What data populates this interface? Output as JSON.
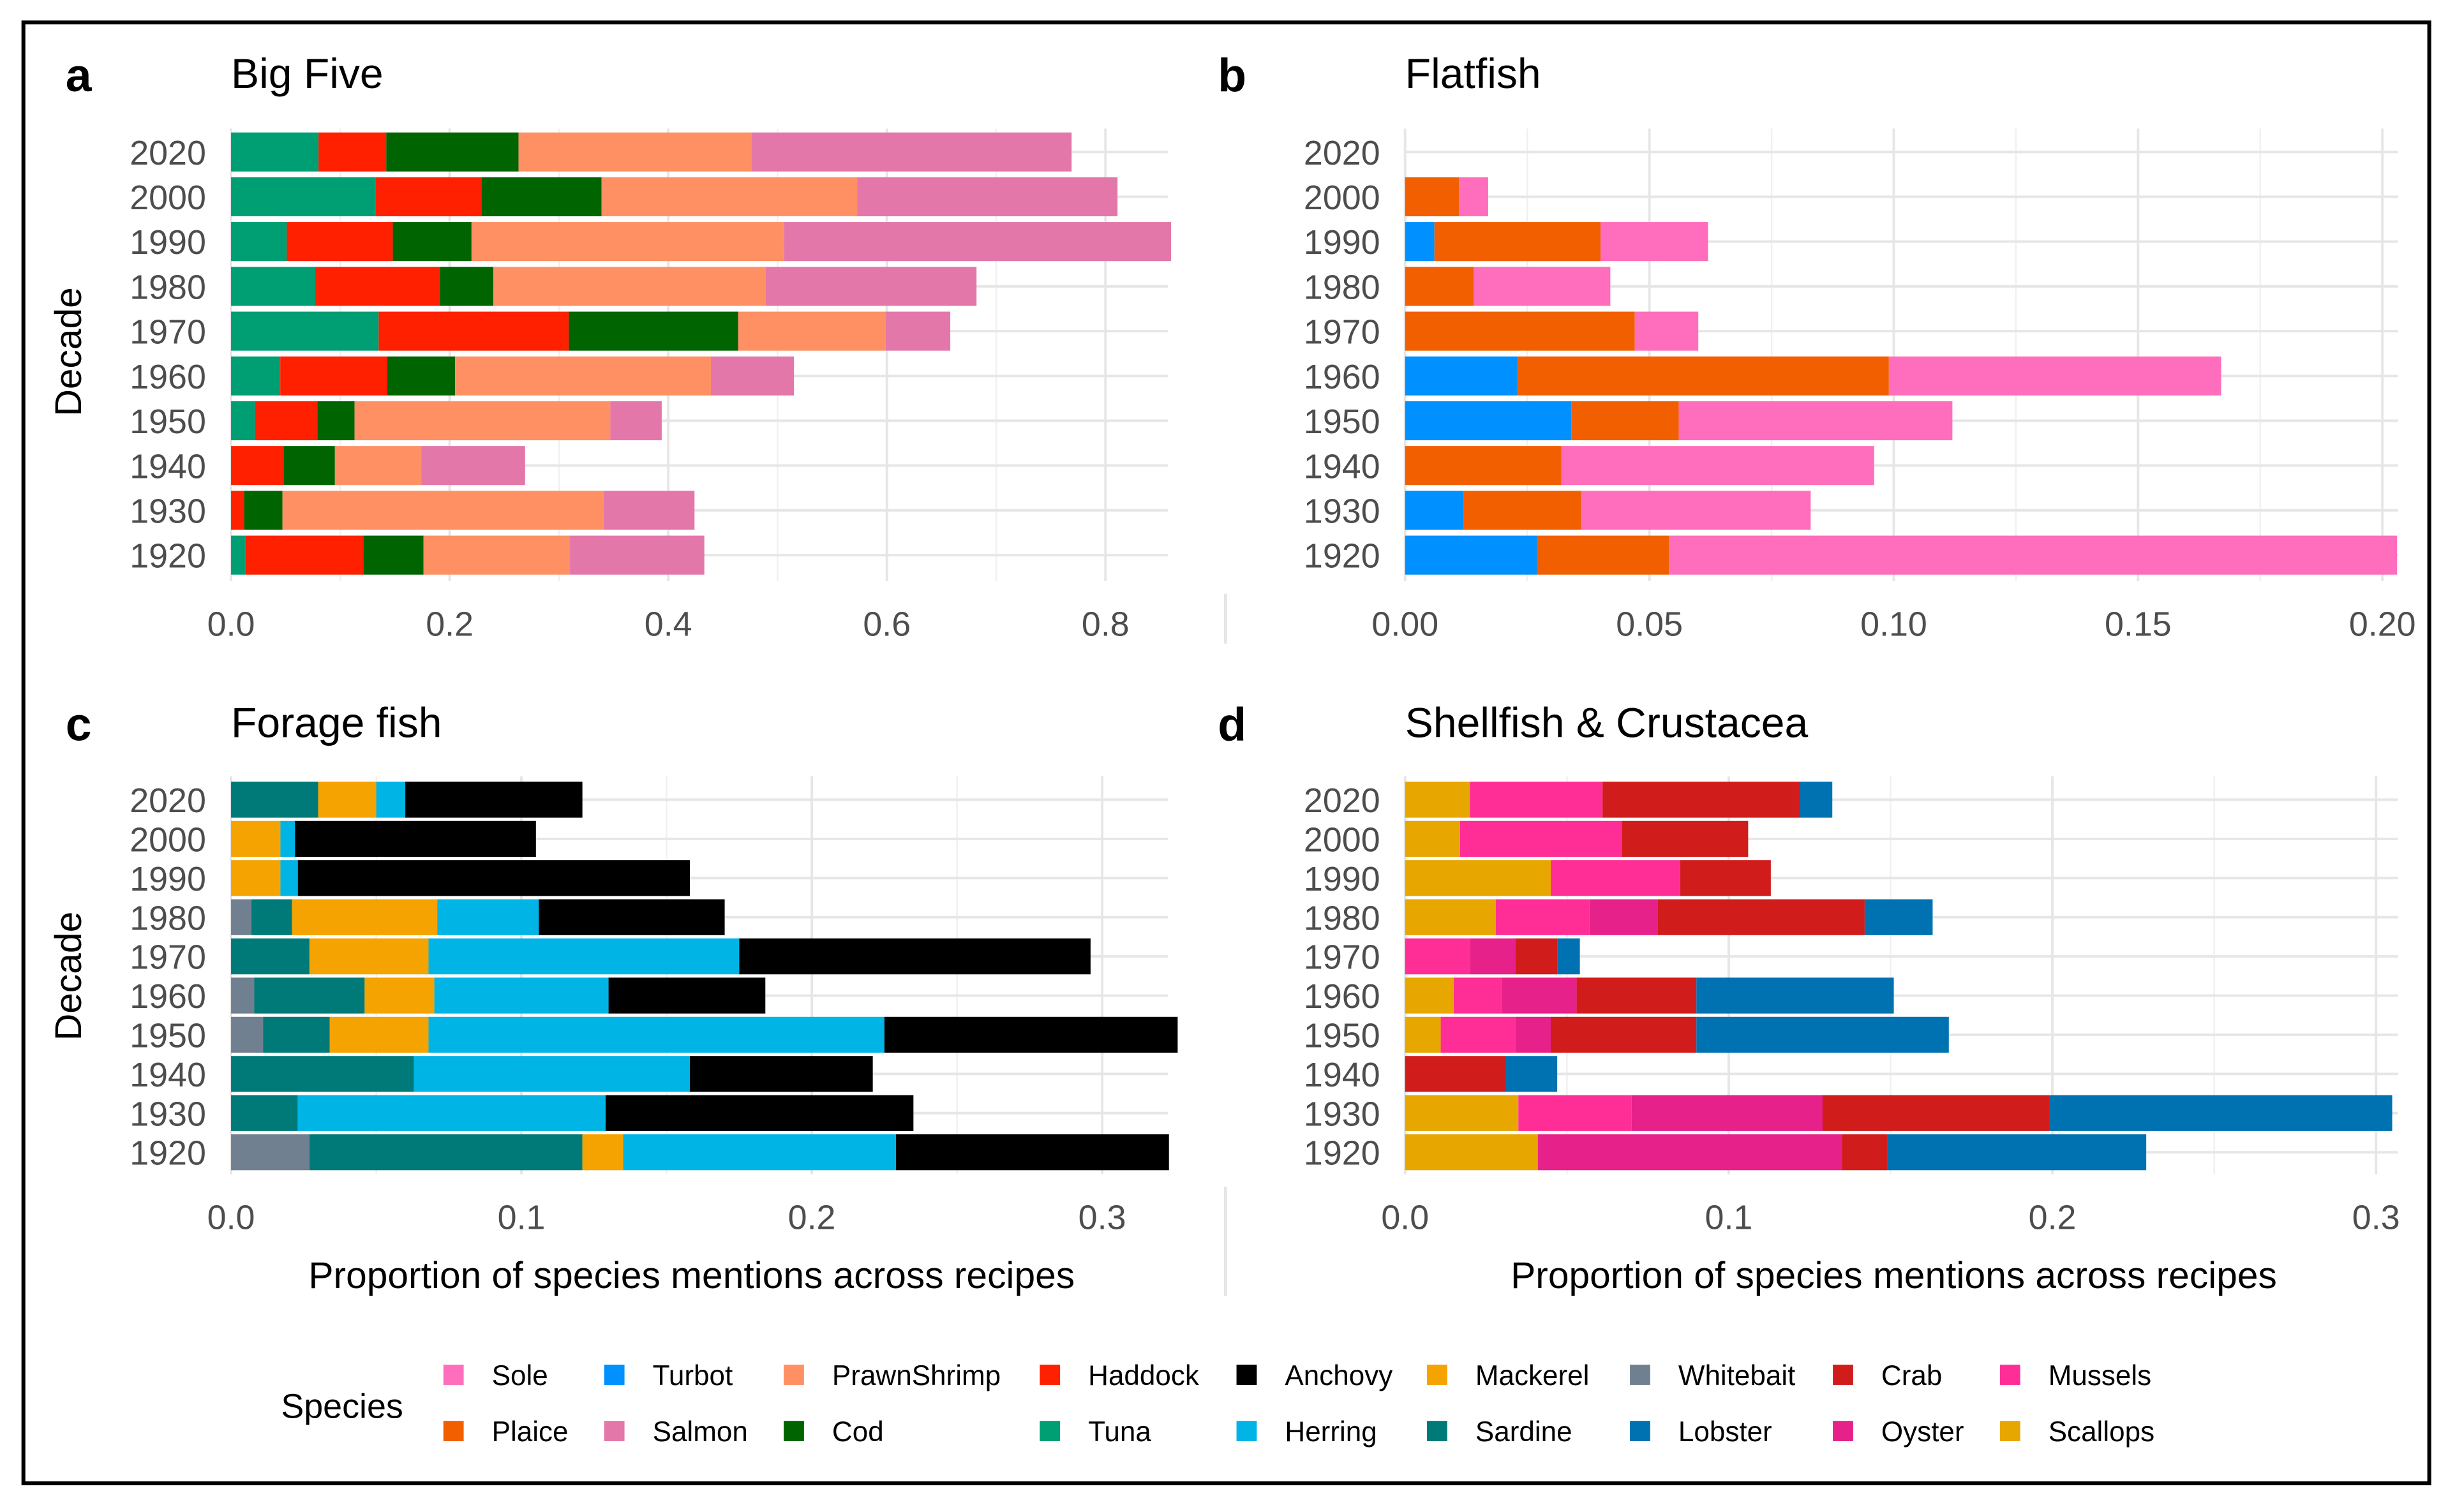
{
  "chart_data": [
    {
      "panel_label": "a",
      "title": "Big Five",
      "type": "bar",
      "orientation": "horizontal",
      "stacked": true,
      "ylabel": "Decade",
      "xlabel": "",
      "categories": [
        "2020",
        "2000",
        "1990",
        "1980",
        "1970",
        "1960",
        "1950",
        "1940",
        "1930",
        "1920"
      ],
      "xlim": [
        0,
        0.857
      ],
      "xticks": [
        0,
        0.2,
        0.4,
        0.6,
        0.8
      ],
      "xtick_labels": [
        "0.0",
        "0.2",
        "0.4",
        "0.6",
        "0.8"
      ],
      "series": [
        {
          "name": "Tuna",
          "color": "#009e73",
          "values": [
            0.08,
            0.132,
            0.051,
            0.077,
            0.135,
            0.045,
            0.022,
            0,
            0,
            0.013
          ]
        },
        {
          "name": "Haddock",
          "color": "#ff2000",
          "values": [
            0.062,
            0.097,
            0.097,
            0.114,
            0.174,
            0.098,
            0.057,
            0.048,
            0.012,
            0.108
          ]
        },
        {
          "name": "Cod",
          "color": "#006400",
          "values": [
            0.121,
            0.11,
            0.072,
            0.049,
            0.155,
            0.062,
            0.034,
            0.047,
            0.035,
            0.055
          ]
        },
        {
          "name": "PrawnShrimp",
          "color": "#ff9063",
          "values": [
            0.213,
            0.234,
            0.286,
            0.249,
            0.135,
            0.234,
            0.234,
            0.079,
            0.294,
            0.134
          ]
        },
        {
          "name": "Salmon",
          "color": "#e377aa",
          "values": [
            0.293,
            0.238,
            0.354,
            0.193,
            0.059,
            0.076,
            0.047,
            0.095,
            0.083,
            0.123
          ]
        }
      ]
    },
    {
      "panel_label": "b",
      "title": "Flatfish",
      "type": "bar",
      "orientation": "horizontal",
      "stacked": true,
      "ylabel": "",
      "xlabel": "",
      "categories": [
        "2020",
        "2000",
        "1990",
        "1980",
        "1970",
        "1960",
        "1950",
        "1940",
        "1930",
        "1920"
      ],
      "xlim": [
        0,
        0.2032
      ],
      "xticks": [
        0,
        0.05,
        0.1,
        0.15,
        0.2
      ],
      "xtick_labels": [
        "0.00",
        "0.05",
        "0.10",
        "0.15",
        "0.20"
      ],
      "series": [
        {
          "name": "Turbot",
          "color": "#0090ff",
          "values": [
            0,
            0,
            0.006,
            0,
            0,
            0.023,
            0.034,
            0,
            0.012,
            0.027
          ]
        },
        {
          "name": "Plaice",
          "color": "#f25f00",
          "values": [
            0,
            0.011,
            0.034,
            0.014,
            0.047,
            0.076,
            0.022,
            0.032,
            0.024,
            0.027
          ]
        },
        {
          "name": "Sole",
          "color": "#ff6ebc",
          "values": [
            0,
            0.006,
            0.022,
            0.028,
            0.013,
            0.068,
            0.056,
            0.064,
            0.047,
            0.149
          ]
        }
      ]
    },
    {
      "panel_label": "c",
      "title": "Forage fish",
      "type": "bar",
      "orientation": "horizontal",
      "stacked": true,
      "ylabel": "Decade",
      "xlabel": "Proportion of species mentions across recipes",
      "categories": [
        "2020",
        "2000",
        "1990",
        "1980",
        "1970",
        "1960",
        "1950",
        "1940",
        "1930",
        "1920"
      ],
      "xlim": [
        0,
        0.3226
      ],
      "xticks": [
        0,
        0.1,
        0.2,
        0.3
      ],
      "xtick_labels": [
        "0.0",
        "0.1",
        "0.2",
        "0.3"
      ],
      "series": [
        {
          "name": "Whitebait",
          "color": "#708090",
          "values": [
            0,
            0,
            0,
            0.007,
            0,
            0.008,
            0.011,
            0,
            0,
            0.027
          ]
        },
        {
          "name": "Sardine",
          "color": "#007a78",
          "values": [
            0.03,
            0,
            0,
            0.014,
            0.027,
            0.038,
            0.023,
            0.063,
            0.023,
            0.094
          ]
        },
        {
          "name": "Mackerel",
          "color": "#f5a300",
          "values": [
            0.02,
            0.017,
            0.017,
            0.05,
            0.041,
            0.024,
            0.034,
            0,
            0,
            0.014
          ]
        },
        {
          "name": "Herring",
          "color": "#00b4e6",
          "values": [
            0.01,
            0.005,
            0.006,
            0.035,
            0.107,
            0.06,
            0.157,
            0.095,
            0.106,
            0.094
          ]
        },
        {
          "name": "Anchovy",
          "color": "#000000",
          "values": [
            0.061,
            0.083,
            0.135,
            0.064,
            0.121,
            0.054,
            0.101,
            0.063,
            0.106,
            0.094
          ]
        }
      ]
    },
    {
      "panel_label": "d",
      "title": "Shellfish & Crustacea",
      "type": "bar",
      "orientation": "horizontal",
      "stacked": true,
      "ylabel": "",
      "xlabel": "Proportion of species mentions across recipes",
      "categories": [
        "2020",
        "2000",
        "1990",
        "1980",
        "1970",
        "1960",
        "1950",
        "1940",
        "1930",
        "1920"
      ],
      "xlim": [
        0,
        0.3068
      ],
      "xticks": [
        0,
        0.1,
        0.2,
        0.3
      ],
      "xtick_labels": [
        "0.0",
        "0.1",
        "0.2",
        "0.3"
      ],
      "series": [
        {
          "name": "Scallops",
          "color": "#e8a600",
          "values": [
            0.02,
            0.017,
            0.045,
            0.028,
            0,
            0.015,
            0.011,
            0,
            0.035,
            0.041
          ]
        },
        {
          "name": "Mussels",
          "color": "#ff2e96",
          "values": [
            0.041,
            0.05,
            0.04,
            0.029,
            0.02,
            0.015,
            0.023,
            0,
            0.035,
            0
          ]
        },
        {
          "name": "Oyster",
          "color": "#e6218a",
          "values": [
            0,
            0,
            0,
            0.021,
            0.014,
            0.023,
            0.011,
            0,
            0.059,
            0.094
          ]
        },
        {
          "name": "Crab",
          "color": "#d11c1c",
          "values": [
            0.061,
            0.039,
            0.028,
            0.064,
            0.013,
            0.037,
            0.045,
            0.031,
            0.07,
            0.014
          ]
        },
        {
          "name": "Lobster",
          "color": "#0072b2",
          "values": [
            0.01,
            0,
            0,
            0.021,
            0.007,
            0.061,
            0.078,
            0.016,
            0.106,
            0.08
          ]
        }
      ]
    }
  ],
  "legend": {
    "title": "Species",
    "items": [
      {
        "name": "Sole",
        "color": "#ff6ebc"
      },
      {
        "name": "Plaice",
        "color": "#f25f00"
      },
      {
        "name": "Turbot",
        "color": "#0090ff"
      },
      {
        "name": "Salmon",
        "color": "#e377aa"
      },
      {
        "name": "PrawnShrimp",
        "color": "#ff9063"
      },
      {
        "name": "Cod",
        "color": "#006400"
      },
      {
        "name": "Haddock",
        "color": "#ff2000"
      },
      {
        "name": "Tuna",
        "color": "#009e73"
      },
      {
        "name": "Anchovy",
        "color": "#000000"
      },
      {
        "name": "Herring",
        "color": "#00b4e6"
      },
      {
        "name": "Mackerel",
        "color": "#f5a300"
      },
      {
        "name": "Sardine",
        "color": "#007a78"
      },
      {
        "name": "Whitebait",
        "color": "#708090"
      },
      {
        "name": "Lobster",
        "color": "#0072b2"
      },
      {
        "name": "Crab",
        "color": "#d11c1c"
      },
      {
        "name": "Oyster",
        "color": "#e6218a"
      },
      {
        "name": "Mussels",
        "color": "#ff2e96"
      },
      {
        "name": "Scallops",
        "color": "#e8a600"
      }
    ]
  }
}
